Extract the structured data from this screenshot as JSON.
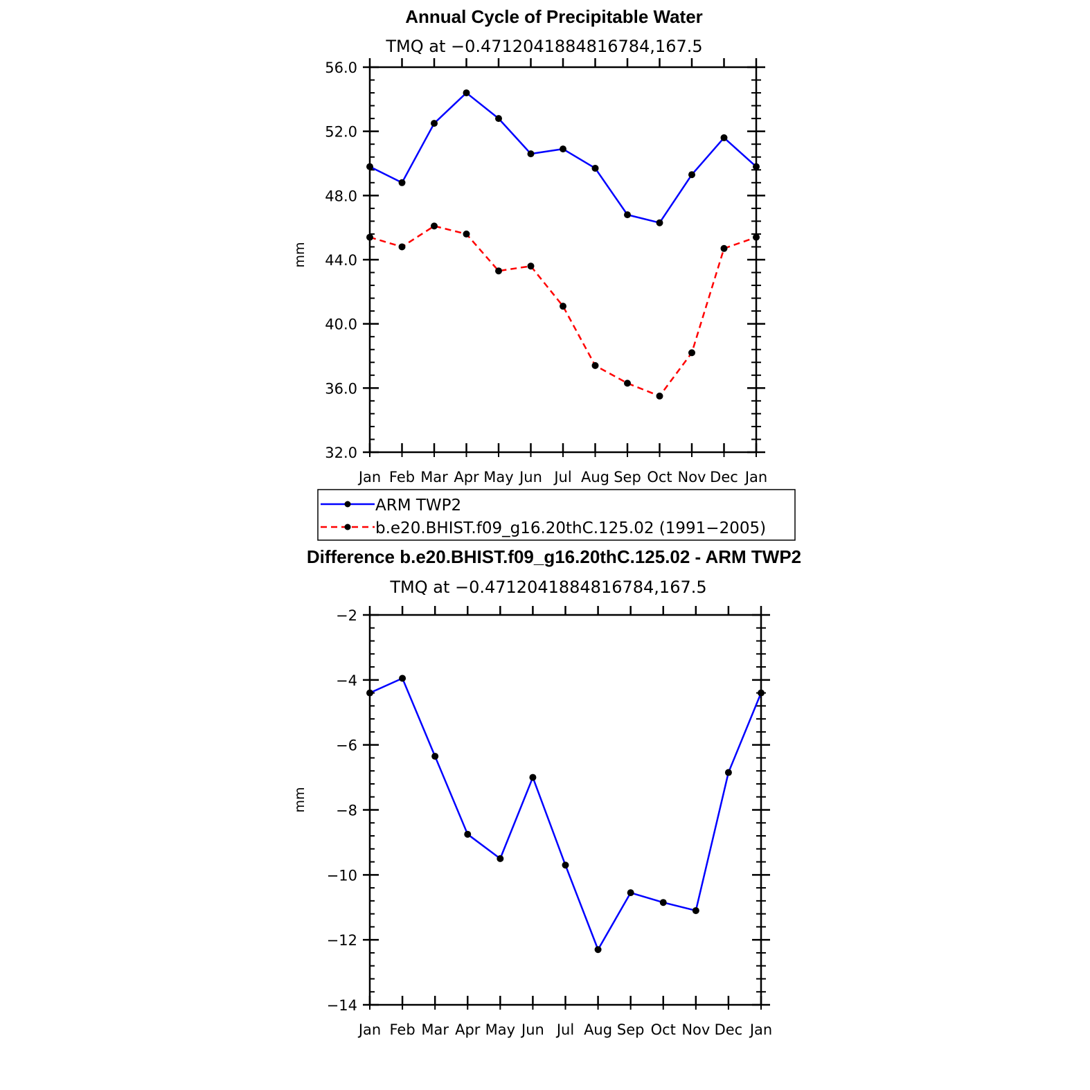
{
  "chart_data": [
    {
      "type": "line",
      "title": "Annual Cycle of Precipitable Water",
      "subtitle": "TMQ at −0.4712041884816784,167.5",
      "ylabel": "mm",
      "ylim": [
        32.0,
        56.0
      ],
      "yticks": [
        "32.0",
        "36.0",
        "40.0",
        "44.0",
        "48.0",
        "52.0",
        "56.0"
      ],
      "categories": [
        "Jan",
        "Feb",
        "Mar",
        "Apr",
        "May",
        "Jun",
        "Jul",
        "Aug",
        "Sep",
        "Oct",
        "Nov",
        "Dec",
        "Jan"
      ],
      "series": [
        {
          "name": "ARM TWP2",
          "color": "#0000ff",
          "dash": "solid",
          "values": [
            49.8,
            48.8,
            52.5,
            54.4,
            52.8,
            50.6,
            50.9,
            49.7,
            46.8,
            46.3,
            49.3,
            51.6,
            49.8
          ]
        },
        {
          "name": "b.e20.BHIST.f09_g16.20thC.125.02 (1991−2005)",
          "color": "#ff0000",
          "dash": "dashed",
          "values": [
            45.4,
            44.8,
            46.1,
            45.6,
            43.3,
            43.6,
            41.1,
            37.4,
            36.3,
            35.5,
            38.2,
            44.7,
            45.4
          ]
        }
      ],
      "legend": "bottom"
    },
    {
      "type": "line",
      "title": "Difference b.e20.BHIST.f09_g16.20thC.125.02 - ARM TWP2",
      "subtitle": "TMQ at −0.4712041884816784,167.5",
      "ylabel": "mm",
      "ylim": [
        -14,
        -2
      ],
      "yticks": [
        "−14",
        "−12",
        "−10",
        "−8",
        "−6",
        "−4",
        "−2"
      ],
      "categories": [
        "Jan",
        "Feb",
        "Mar",
        "Apr",
        "May",
        "Jun",
        "Jul",
        "Aug",
        "Sep",
        "Oct",
        "Nov",
        "Dec",
        "Jan"
      ],
      "series": [
        {
          "color": "#0000ff",
          "dash": "solid",
          "values": [
            -4.4,
            -3.95,
            -6.35,
            -8.75,
            -9.5,
            -7.0,
            -9.7,
            -12.3,
            -10.55,
            -10.85,
            -11.1,
            -6.85,
            -4.4
          ]
        }
      ]
    }
  ]
}
